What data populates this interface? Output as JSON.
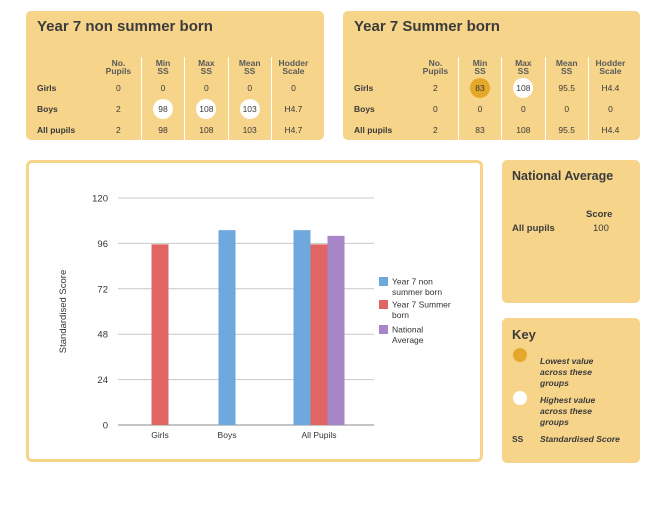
{
  "non_summer": {
    "title": "Year 7 non summer born",
    "columns": [
      "No.\nPupils",
      "Min\nSS",
      "Max\nSS",
      "Mean\nSS",
      "Hodder\nScale"
    ],
    "rows": [
      {
        "label": "Girls",
        "cells": [
          "0",
          "0",
          "0",
          "0",
          "0"
        ]
      },
      {
        "label": "Boys",
        "cells": [
          "2",
          "98",
          "108",
          "103",
          "H4.7"
        ]
      },
      {
        "label": "All pupils",
        "cells": [
          "2",
          "98",
          "108",
          "103",
          "H4.7"
        ]
      }
    ]
  },
  "summer": {
    "title": "Year 7 Summer born",
    "columns": [
      "No.\nPupils",
      "Min\nSS",
      "Max\nSS",
      "Mean\nSS",
      "Hodder\nScale"
    ],
    "rows": [
      {
        "label": "Girls",
        "cells": [
          "2",
          "83",
          "108",
          "95.5",
          "H4.4"
        ]
      },
      {
        "label": "Boys",
        "cells": [
          "0",
          "0",
          "0",
          "0",
          "0"
        ]
      },
      {
        "label": "All pupils",
        "cells": [
          "2",
          "83",
          "108",
          "95.5",
          "H4.4"
        ]
      }
    ]
  },
  "national": {
    "title": "National Average",
    "score_header": "Score",
    "row_label": "All pupils",
    "row_value": "100"
  },
  "key": {
    "title": "Key",
    "lowest_text": "Lowest value across these groups",
    "highest_text": "Highest value across these groups",
    "ss_abbr": "SS",
    "ss_text": "Standardised Score",
    "low_color": "#e5a82b",
    "high_color": "#ffffff"
  },
  "chart_data": {
    "type": "bar",
    "categories": [
      "Girls",
      "Boys",
      "All Pupils"
    ],
    "series": [
      {
        "name": "Year 7 non summer born",
        "color": "#6fa8dc",
        "values": [
          0,
          103,
          103
        ]
      },
      {
        "name": "Year 7 Summer born",
        "color": "#e06666",
        "values": [
          95.5,
          0,
          95.5
        ]
      },
      {
        "name": "National Average",
        "color": "#a686c6",
        "values": [
          0,
          0,
          100
        ]
      }
    ],
    "ylabel": "Standardised Score",
    "xlabel": "",
    "ylim": [
      0,
      120
    ],
    "yticks": [
      0,
      24,
      48,
      72,
      96,
      120
    ],
    "grid": true,
    "legend": "right"
  }
}
